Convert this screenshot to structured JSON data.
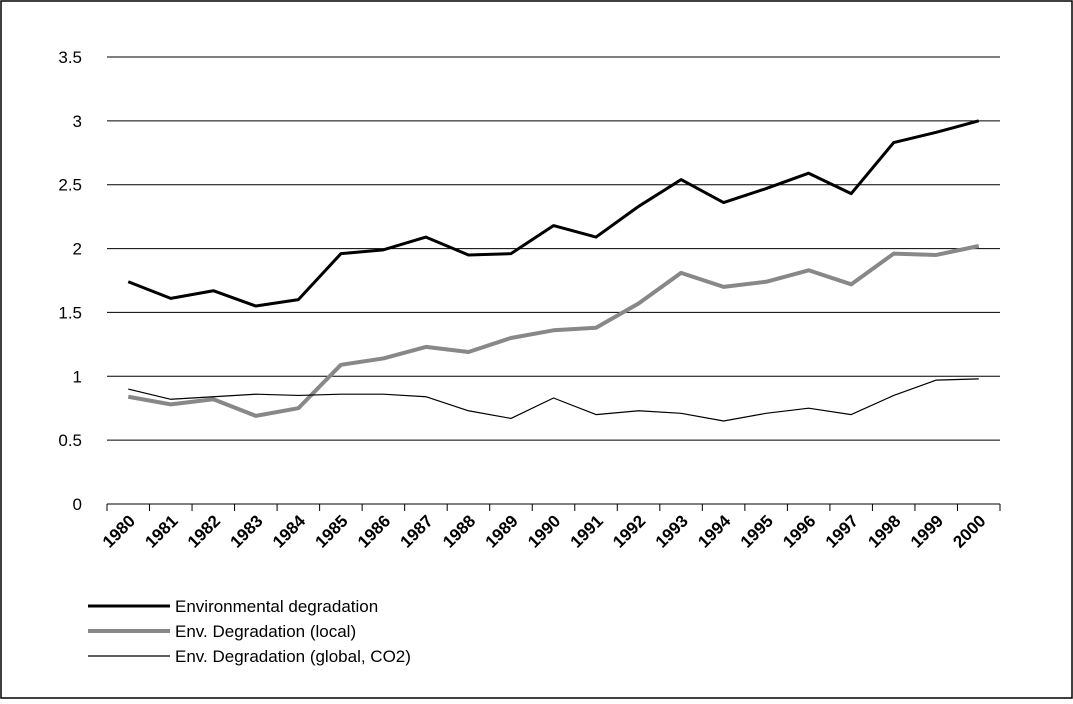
{
  "chart_data": {
    "type": "line",
    "categories": [
      "1980",
      "1981",
      "1982",
      "1983",
      "1984",
      "1985",
      "1986",
      "1987",
      "1988",
      "1989",
      "1990",
      "1991",
      "1992",
      "1993",
      "1994",
      "1995",
      "1996",
      "1997",
      "1998",
      "1999",
      "2000"
    ],
    "series": [
      {
        "name": "Environmental degradation",
        "color": "#000000",
        "width": 3,
        "values": [
          1.74,
          1.61,
          1.67,
          1.55,
          1.6,
          1.96,
          1.99,
          2.09,
          1.95,
          1.96,
          2.18,
          2.09,
          2.33,
          2.54,
          2.36,
          2.47,
          2.59,
          2.43,
          2.83,
          2.91,
          3.0
        ]
      },
      {
        "name": "Env. Degradation (local)",
        "color": "#888888",
        "width": 4,
        "values": [
          0.84,
          0.78,
          0.82,
          0.69,
          0.75,
          1.09,
          1.14,
          1.23,
          1.19,
          1.3,
          1.36,
          1.38,
          1.57,
          1.81,
          1.7,
          1.74,
          1.83,
          1.72,
          1.96,
          1.95,
          2.02
        ]
      },
      {
        "name": "Env. Degradation (global, CO2)",
        "color": "#000000",
        "width": 1.2,
        "values": [
          0.9,
          0.82,
          0.84,
          0.86,
          0.85,
          0.86,
          0.86,
          0.84,
          0.73,
          0.67,
          0.83,
          0.7,
          0.73,
          0.71,
          0.65,
          0.71,
          0.75,
          0.7,
          0.85,
          0.97,
          0.98
        ]
      }
    ],
    "ylim": [
      0,
      3.5
    ],
    "yticks": [
      0,
      0.5,
      1,
      1.5,
      2,
      2.5,
      3,
      3.5
    ],
    "grid": true,
    "legend": "bottom"
  }
}
